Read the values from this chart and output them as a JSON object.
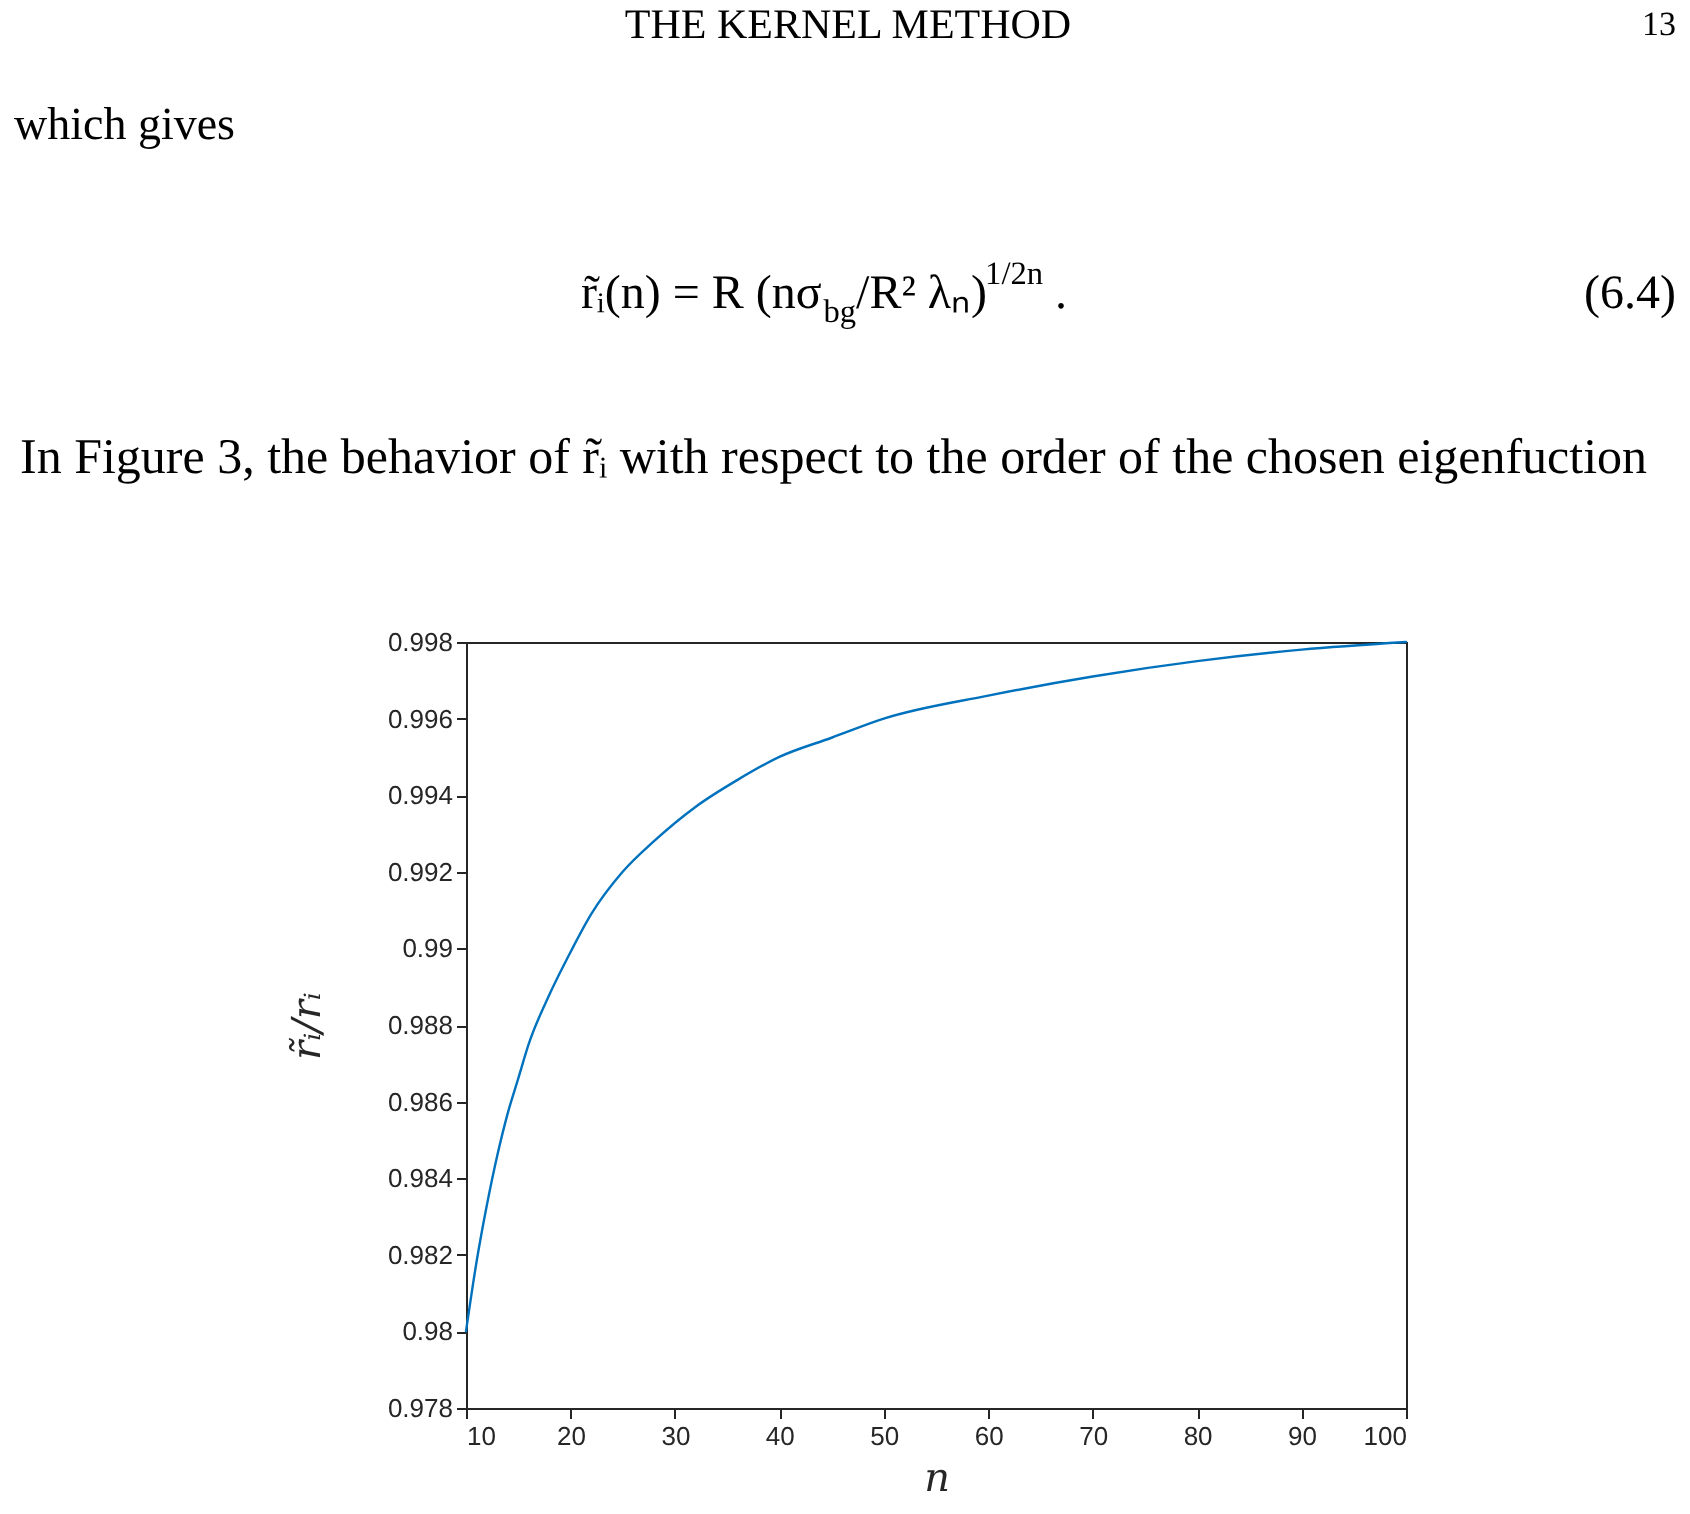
{
  "chart_data": {
    "type": "line",
    "xlabel": "n",
    "ylabel": "r̃ᵢ/rᵢ",
    "x": [
      10,
      11,
      12,
      13,
      14,
      15,
      16,
      18,
      20,
      22,
      25,
      28,
      32,
      36,
      40,
      45,
      50,
      60,
      70,
      80,
      90,
      100
    ],
    "series": [
      {
        "color": "#0072bd",
        "values": [
          0.98,
          0.9818,
          0.9833,
          0.9846,
          0.9857,
          0.9866,
          0.9875,
          0.9888,
          0.9899,
          0.9909,
          0.992,
          0.9928,
          0.9937,
          0.9944,
          0.995,
          0.9955,
          0.996,
          0.9966,
          0.9971,
          0.9975,
          0.9978,
          0.998
        ]
      }
    ],
    "xlim": [
      10,
      100
    ],
    "xticks": [
      10,
      20,
      30,
      40,
      50,
      60,
      70,
      80,
      90,
      100
    ],
    "ylim": [
      0.978,
      0.998
    ],
    "yticks": [
      0.978,
      0.98,
      0.982,
      0.984,
      0.986,
      0.988,
      0.99,
      0.992,
      0.994,
      0.996,
      0.998
    ],
    "line_style": "solid",
    "annotations": [
      "THE KERNEL METHOD",
      "13",
      "which gives",
      "r̃ᵢ(n) = R (nσ$_{bg}$/R² λₙ)$^{1/2n}$ .",
      "(6.4)",
      "In Figure 3, the behavior of r̃ᵢ with respect to the order of the chosen eigenfuction"
    ]
  }
}
